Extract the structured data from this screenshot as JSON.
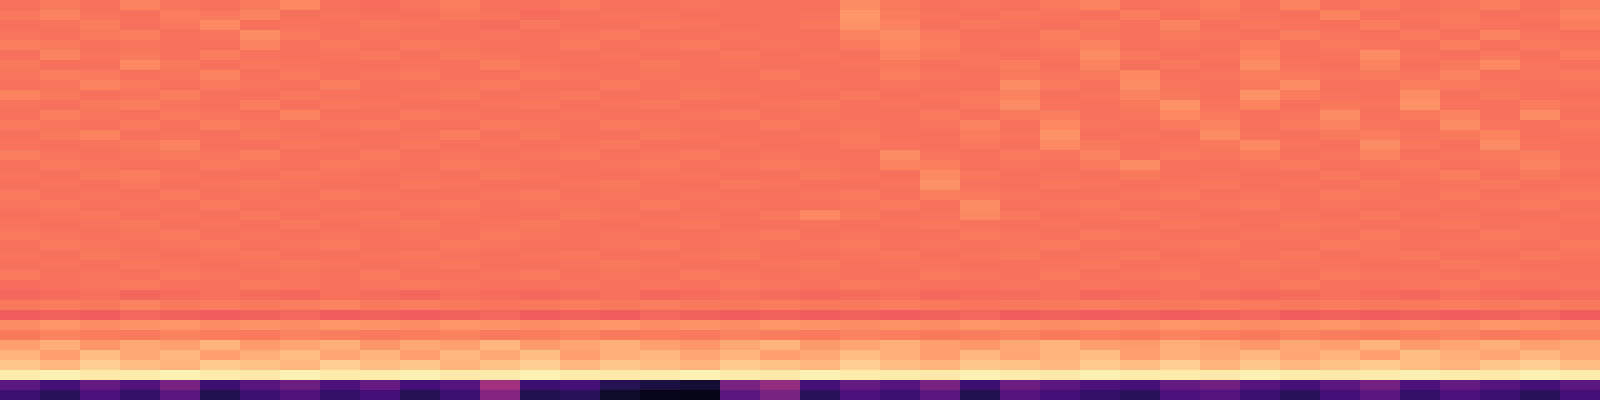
{
  "chart_data": {
    "type": "heatmap",
    "color": "magma",
    "zlim": [
      0,
      100
    ],
    "tick_labels": false,
    "cells": [
      [
        70,
        72,
        70,
        74,
        71,
        70,
        72,
        75,
        70,
        69,
        71,
        73,
        70,
        70,
        72,
        70,
        70,
        71,
        70,
        70,
        70,
        76,
        72,
        70,
        71,
        70,
        72,
        74,
        70,
        71,
        73,
        70,
        74,
        70,
        72,
        70,
        71,
        73,
        70,
        72
      ],
      [
        72,
        74,
        71,
        70,
        73,
        72,
        74,
        70,
        71,
        70,
        70,
        72,
        71,
        69,
        70,
        71,
        71,
        70,
        70,
        70,
        71,
        78,
        73,
        71,
        70,
        72,
        71,
        70,
        73,
        70,
        72,
        71,
        70,
        74,
        70,
        71,
        72,
        70,
        71,
        74
      ],
      [
        70,
        71,
        73,
        70,
        72,
        75,
        70,
        71,
        70,
        72,
        71,
        70,
        69,
        72,
        70,
        70,
        72,
        71,
        70,
        70,
        72,
        77,
        74,
        70,
        72,
        71,
        70,
        72,
        70,
        74,
        70,
        72,
        71,
        70,
        73,
        70,
        72,
        71,
        70,
        73
      ],
      [
        71,
        70,
        72,
        73,
        70,
        71,
        76,
        72,
        70,
        71,
        70,
        70,
        71,
        70,
        71,
        72,
        70,
        70,
        71,
        70,
        70,
        74,
        76,
        72,
        70,
        70,
        73,
        71,
        70,
        72,
        71,
        70,
        73,
        71,
        70,
        72,
        70,
        74,
        71,
        70
      ],
      [
        73,
        72,
        70,
        71,
        70,
        70,
        74,
        70,
        72,
        70,
        72,
        71,
        70,
        70,
        72,
        70,
        71,
        72,
        70,
        71,
        70,
        72,
        75,
        73,
        70,
        71,
        72,
        74,
        70,
        71,
        70,
        73,
        70,
        72,
        71,
        70,
        73,
        70,
        72,
        71
      ],
      [
        70,
        74,
        71,
        72,
        70,
        73,
        71,
        70,
        71,
        72,
        70,
        72,
        71,
        70,
        70,
        71,
        70,
        70,
        72,
        70,
        71,
        70,
        74,
        72,
        71,
        70,
        71,
        76,
        72,
        70,
        71,
        74,
        70,
        71,
        76,
        71,
        70,
        72,
        70,
        73
      ],
      [
        72,
        70,
        70,
        75,
        72,
        70,
        72,
        71,
        70,
        70,
        71,
        70,
        73,
        71,
        70,
        70,
        72,
        70,
        71,
        70,
        70,
        71,
        72,
        70,
        71,
        73,
        70,
        74,
        70,
        72,
        70,
        76,
        71,
        70,
        74,
        70,
        72,
        75,
        71,
        70
      ],
      [
        71,
        73,
        72,
        70,
        71,
        74,
        70,
        72,
        70,
        71,
        72,
        70,
        70,
        72,
        71,
        70,
        71,
        70,
        70,
        72,
        70,
        70,
        73,
        71,
        70,
        72,
        71,
        72,
        75,
        70,
        71,
        73,
        72,
        71,
        72,
        71,
        74,
        70,
        71,
        72
      ],
      [
        70,
        71,
        74,
        72,
        70,
        72,
        71,
        70,
        73,
        70,
        70,
        71,
        72,
        70,
        70,
        72,
        70,
        71,
        70,
        70,
        71,
        70,
        71,
        70,
        70,
        76,
        72,
        70,
        76,
        71,
        70,
        72,
        76,
        70,
        70,
        73,
        72,
        71,
        70,
        71
      ],
      [
        74,
        72,
        70,
        71,
        73,
        70,
        70,
        72,
        71,
        70,
        71,
        72,
        70,
        71,
        72,
        70,
        70,
        72,
        71,
        70,
        70,
        72,
        70,
        71,
        72,
        74,
        70,
        71,
        74,
        72,
        70,
        77,
        73,
        71,
        70,
        76,
        70,
        72,
        70,
        70
      ],
      [
        71,
        70,
        72,
        73,
        71,
        70,
        73,
        70,
        72,
        71,
        70,
        70,
        71,
        72,
        70,
        71,
        72,
        70,
        70,
        71,
        72,
        70,
        71,
        70,
        72,
        76,
        71,
        70,
        72,
        77,
        71,
        74,
        70,
        72,
        71,
        77,
        71,
        70,
        73,
        71
      ],
      [
        70,
        73,
        71,
        70,
        72,
        71,
        70,
        74,
        70,
        70,
        72,
        71,
        70,
        70,
        71,
        70,
        70,
        71,
        72,
        70,
        71,
        70,
        70,
        72,
        70,
        72,
        73,
        70,
        71,
        75,
        72,
        70,
        71,
        76,
        70,
        72,
        74,
        70,
        76,
        70
      ],
      [
        72,
        71,
        70,
        72,
        70,
        73,
        71,
        70,
        71,
        72,
        70,
        70,
        72,
        71,
        70,
        72,
        71,
        70,
        70,
        72,
        70,
        71,
        70,
        71,
        74,
        70,
        75,
        71,
        70,
        72,
        74,
        70,
        72,
        74,
        71,
        70,
        76,
        71,
        70,
        72
      ],
      [
        70,
        72,
        74,
        70,
        71,
        70,
        72,
        71,
        70,
        70,
        71,
        73,
        70,
        72,
        70,
        70,
        72,
        71,
        70,
        70,
        71,
        72,
        70,
        70,
        73,
        71,
        77,
        70,
        71,
        70,
        76,
        71,
        70,
        72,
        73,
        71,
        72,
        74,
        70,
        71
      ],
      [
        71,
        70,
        71,
        72,
        74,
        70,
        70,
        72,
        71,
        70,
        72,
        70,
        71,
        70,
        71,
        72,
        70,
        70,
        71,
        70,
        70,
        72,
        71,
        70,
        72,
        70,
        75,
        72,
        70,
        71,
        72,
        75,
        71,
        70,
        76,
        72,
        70,
        76,
        71,
        70
      ],
      [
        73,
        71,
        70,
        71,
        72,
        71,
        73,
        70,
        70,
        72,
        70,
        71,
        70,
        71,
        72,
        70,
        71,
        72,
        70,
        71,
        70,
        70,
        76,
        71,
        70,
        72,
        71,
        74,
        70,
        72,
        71,
        73,
        70,
        71,
        74,
        70,
        71,
        72,
        73,
        70
      ],
      [
        70,
        72,
        71,
        70,
        70,
        72,
        71,
        70,
        72,
        71,
        70,
        72,
        71,
        70,
        70,
        71,
        72,
        70,
        71,
        72,
        71,
        70,
        74,
        73,
        70,
        71,
        70,
        72,
        76,
        70,
        70,
        71,
        72,
        70,
        71,
        72,
        70,
        71,
        74,
        71
      ],
      [
        71,
        70,
        72,
        73,
        71,
        70,
        70,
        72,
        71,
        70,
        71,
        70,
        72,
        71,
        70,
        70,
        71,
        71,
        70,
        70,
        72,
        71,
        70,
        75,
        72,
        70,
        71,
        70,
        72,
        70,
        71,
        70,
        70,
        72,
        70,
        71,
        73,
        70,
        72,
        70
      ],
      [
        70,
        71,
        70,
        72,
        70,
        71,
        72,
        71,
        70,
        70,
        72,
        71,
        70,
        70,
        71,
        72,
        70,
        70,
        72,
        71,
        70,
        70,
        71,
        77,
        71,
        70,
        72,
        71,
        70,
        71,
        72,
        70,
        71,
        70,
        72,
        70,
        71,
        72,
        70,
        71
      ],
      [
        72,
        70,
        71,
        70,
        72,
        70,
        71,
        70,
        72,
        71,
        70,
        70,
        71,
        72,
        70,
        71,
        70,
        71,
        70,
        70,
        71,
        72,
        70,
        73,
        72,
        71,
        70,
        70,
        71,
        72,
        70,
        71,
        70,
        72,
        71,
        70,
        72,
        70,
        71,
        72
      ],
      [
        71,
        72,
        70,
        71,
        70,
        72,
        70,
        71,
        70,
        70,
        71,
        72,
        70,
        71,
        71,
        70,
        72,
        70,
        71,
        70,
        70,
        71,
        72,
        70,
        76,
        70,
        71,
        72,
        70,
        70,
        71,
        72,
        70,
        71,
        70,
        71,
        70,
        71,
        72,
        70
      ],
      [
        70,
        71,
        72,
        70,
        71,
        70,
        72,
        70,
        71,
        72,
        70,
        71,
        70,
        70,
        72,
        71,
        70,
        71,
        70,
        72,
        75,
        72,
        70,
        71,
        75,
        72,
        70,
        71,
        72,
        71,
        70,
        70,
        71,
        70,
        72,
        70,
        71,
        70,
        70,
        71
      ],
      [
        71,
        70,
        71,
        72,
        70,
        71,
        70,
        72,
        70,
        71,
        72,
        70,
        71,
        72,
        70,
        70,
        71,
        72,
        70,
        70,
        71,
        70,
        71,
        72,
        71,
        70,
        71,
        70,
        70,
        72,
        71,
        70,
        72,
        71,
        70,
        71,
        72,
        70,
        71,
        70
      ],
      [
        72,
        71,
        70,
        71,
        72,
        70,
        71,
        70,
        71,
        70,
        71,
        70,
        72,
        71,
        70,
        71,
        70,
        70,
        71,
        72,
        70,
        71,
        70,
        70,
        72,
        71,
        70,
        72,
        71,
        70,
        70,
        71,
        71,
        70,
        72,
        70,
        70,
        72,
        71,
        70
      ],
      [
        70,
        72,
        71,
        70,
        71,
        72,
        70,
        71,
        72,
        70,
        70,
        72,
        71,
        70,
        70,
        71,
        72,
        70,
        71,
        70,
        71,
        72,
        70,
        71,
        70,
        71,
        72,
        70,
        70,
        71,
        72,
        70,
        70,
        72,
        71,
        70,
        71,
        71,
        70,
        72
      ],
      [
        71,
        70,
        72,
        71,
        70,
        71,
        72,
        70,
        70,
        71,
        72,
        71,
        70,
        71,
        72,
        70,
        70,
        71,
        72,
        70,
        70,
        71,
        72,
        70,
        71,
        72,
        70,
        71,
        72,
        70,
        71,
        70,
        72,
        70,
        71,
        72,
        70,
        70,
        72,
        71
      ],
      [
        70,
        71,
        70,
        72,
        71,
        70,
        71,
        72,
        71,
        70,
        71,
        72,
        70,
        70,
        71,
        72,
        71,
        70,
        70,
        71,
        72,
        70,
        71,
        71,
        70,
        70,
        71,
        72,
        70,
        71,
        70,
        72,
        71,
        71,
        70,
        70,
        72,
        71,
        70,
        70
      ],
      [
        72,
        70,
        71,
        70,
        72,
        71,
        70,
        71,
        70,
        72,
        70,
        70,
        71,
        72,
        70,
        71,
        70,
        72,
        71,
        70,
        71,
        70,
        70,
        72,
        71,
        70,
        72,
        70,
        71,
        72,
        70,
        71,
        70,
        72,
        71,
        71,
        70,
        72,
        71,
        70
      ],
      [
        69,
        70,
        71,
        72,
        70,
        70,
        72,
        71,
        70,
        71,
        72,
        71,
        70,
        70,
        71,
        70,
        71,
        70,
        72,
        71,
        70,
        72,
        71,
        70,
        70,
        71,
        70,
        71,
        70,
        70,
        71,
        70,
        72,
        70,
        70,
        71,
        72,
        70,
        70,
        71
      ],
      [
        68,
        69,
        70,
        68,
        69,
        70,
        69,
        68,
        70,
        69,
        68,
        70,
        69,
        68,
        69,
        70,
        68,
        69,
        70,
        69,
        68,
        69,
        70,
        68,
        69,
        69,
        70,
        68,
        69,
        70,
        69,
        68,
        69,
        70,
        69,
        68,
        70,
        69,
        68,
        69
      ],
      [
        72,
        73,
        72,
        74,
        72,
        73,
        72,
        73,
        74,
        72,
        73,
        72,
        71,
        72,
        73,
        72,
        73,
        72,
        72,
        73,
        72,
        72,
        73,
        72,
        71,
        72,
        72,
        73,
        72,
        72,
        73,
        72,
        72,
        73,
        72,
        72,
        73,
        72,
        73,
        72
      ],
      [
        66,
        67,
        66,
        68,
        67,
        66,
        67,
        68,
        66,
        67,
        66,
        67,
        68,
        66,
        67,
        66,
        68,
        67,
        66,
        67,
        66,
        67,
        66,
        67,
        68,
        66,
        67,
        66,
        67,
        66,
        67,
        68,
        66,
        67,
        66,
        67,
        66,
        67,
        68,
        66
      ],
      [
        76,
        78,
        76,
        77,
        78,
        76,
        77,
        76,
        78,
        77,
        76,
        78,
        77,
        76,
        77,
        78,
        76,
        77,
        76,
        78,
        77,
        76,
        77,
        76,
        78,
        77,
        76,
        77,
        76,
        78,
        77,
        76,
        77,
        78,
        76,
        77,
        76,
        78,
        77,
        76
      ],
      [
        72,
        74,
        73,
        72,
        74,
        73,
        72,
        74,
        73,
        72,
        73,
        74,
        72,
        73,
        74,
        72,
        73,
        72,
        74,
        73,
        72,
        74,
        73,
        72,
        73,
        74,
        72,
        73,
        72,
        74,
        73,
        72,
        74,
        73,
        72,
        73,
        74,
        72,
        73,
        74
      ],
      [
        80,
        83,
        78,
        82,
        80,
        84,
        79,
        81,
        83,
        78,
        82,
        80,
        85,
        79,
        81,
        83,
        80,
        78,
        82,
        84,
        79,
        81,
        83,
        80,
        78,
        82,
        84,
        80,
        79,
        83,
        81,
        78,
        82,
        80,
        84,
        79,
        81,
        83,
        80,
        82
      ],
      [
        84,
        80,
        86,
        82,
        85,
        80,
        83,
        86,
        81,
        84,
        80,
        85,
        82,
        86,
        80,
        83,
        85,
        81,
        84,
        80,
        82,
        86,
        83,
        80,
        85,
        81,
        84,
        86,
        80,
        83,
        82,
        85,
        81,
        84,
        80,
        86,
        83,
        81,
        85,
        82
      ],
      [
        88,
        85,
        90,
        86,
        84,
        89,
        87,
        85,
        90,
        86,
        88,
        84,
        87,
        90,
        85,
        88,
        86,
        84,
        89,
        87,
        85,
        90,
        86,
        84,
        88,
        87,
        85,
        89,
        86,
        90,
        84,
        88,
        85,
        87,
        89,
        86,
        84,
        88,
        90,
        86
      ],
      [
        96,
        97,
        95,
        96,
        97,
        96,
        95,
        97,
        96,
        96,
        97,
        95,
        96,
        97,
        96,
        95,
        96,
        97,
        96,
        95,
        97,
        96,
        96,
        95,
        97,
        96,
        95,
        97,
        96,
        96,
        95,
        97,
        96,
        95,
        96,
        97,
        96,
        95,
        97,
        96
      ],
      [
        28,
        22,
        30,
        25,
        35,
        20,
        27,
        32,
        24,
        30,
        22,
        26,
        45,
        20,
        22,
        15,
        12,
        10,
        35,
        42,
        22,
        30,
        26,
        35,
        20,
        32,
        28,
        24,
        22,
        30,
        33,
        26,
        22,
        28,
        34,
        24,
        30,
        26,
        22,
        28
      ],
      [
        20,
        16,
        24,
        18,
        28,
        14,
        20,
        25,
        18,
        22,
        15,
        20,
        38,
        14,
        16,
        8,
        5,
        4,
        28,
        35,
        16,
        24,
        20,
        28,
        14,
        26,
        22,
        18,
        16,
        24,
        26,
        20,
        16,
        22,
        28,
        18,
        24,
        20,
        16,
        22
      ]
    ]
  }
}
